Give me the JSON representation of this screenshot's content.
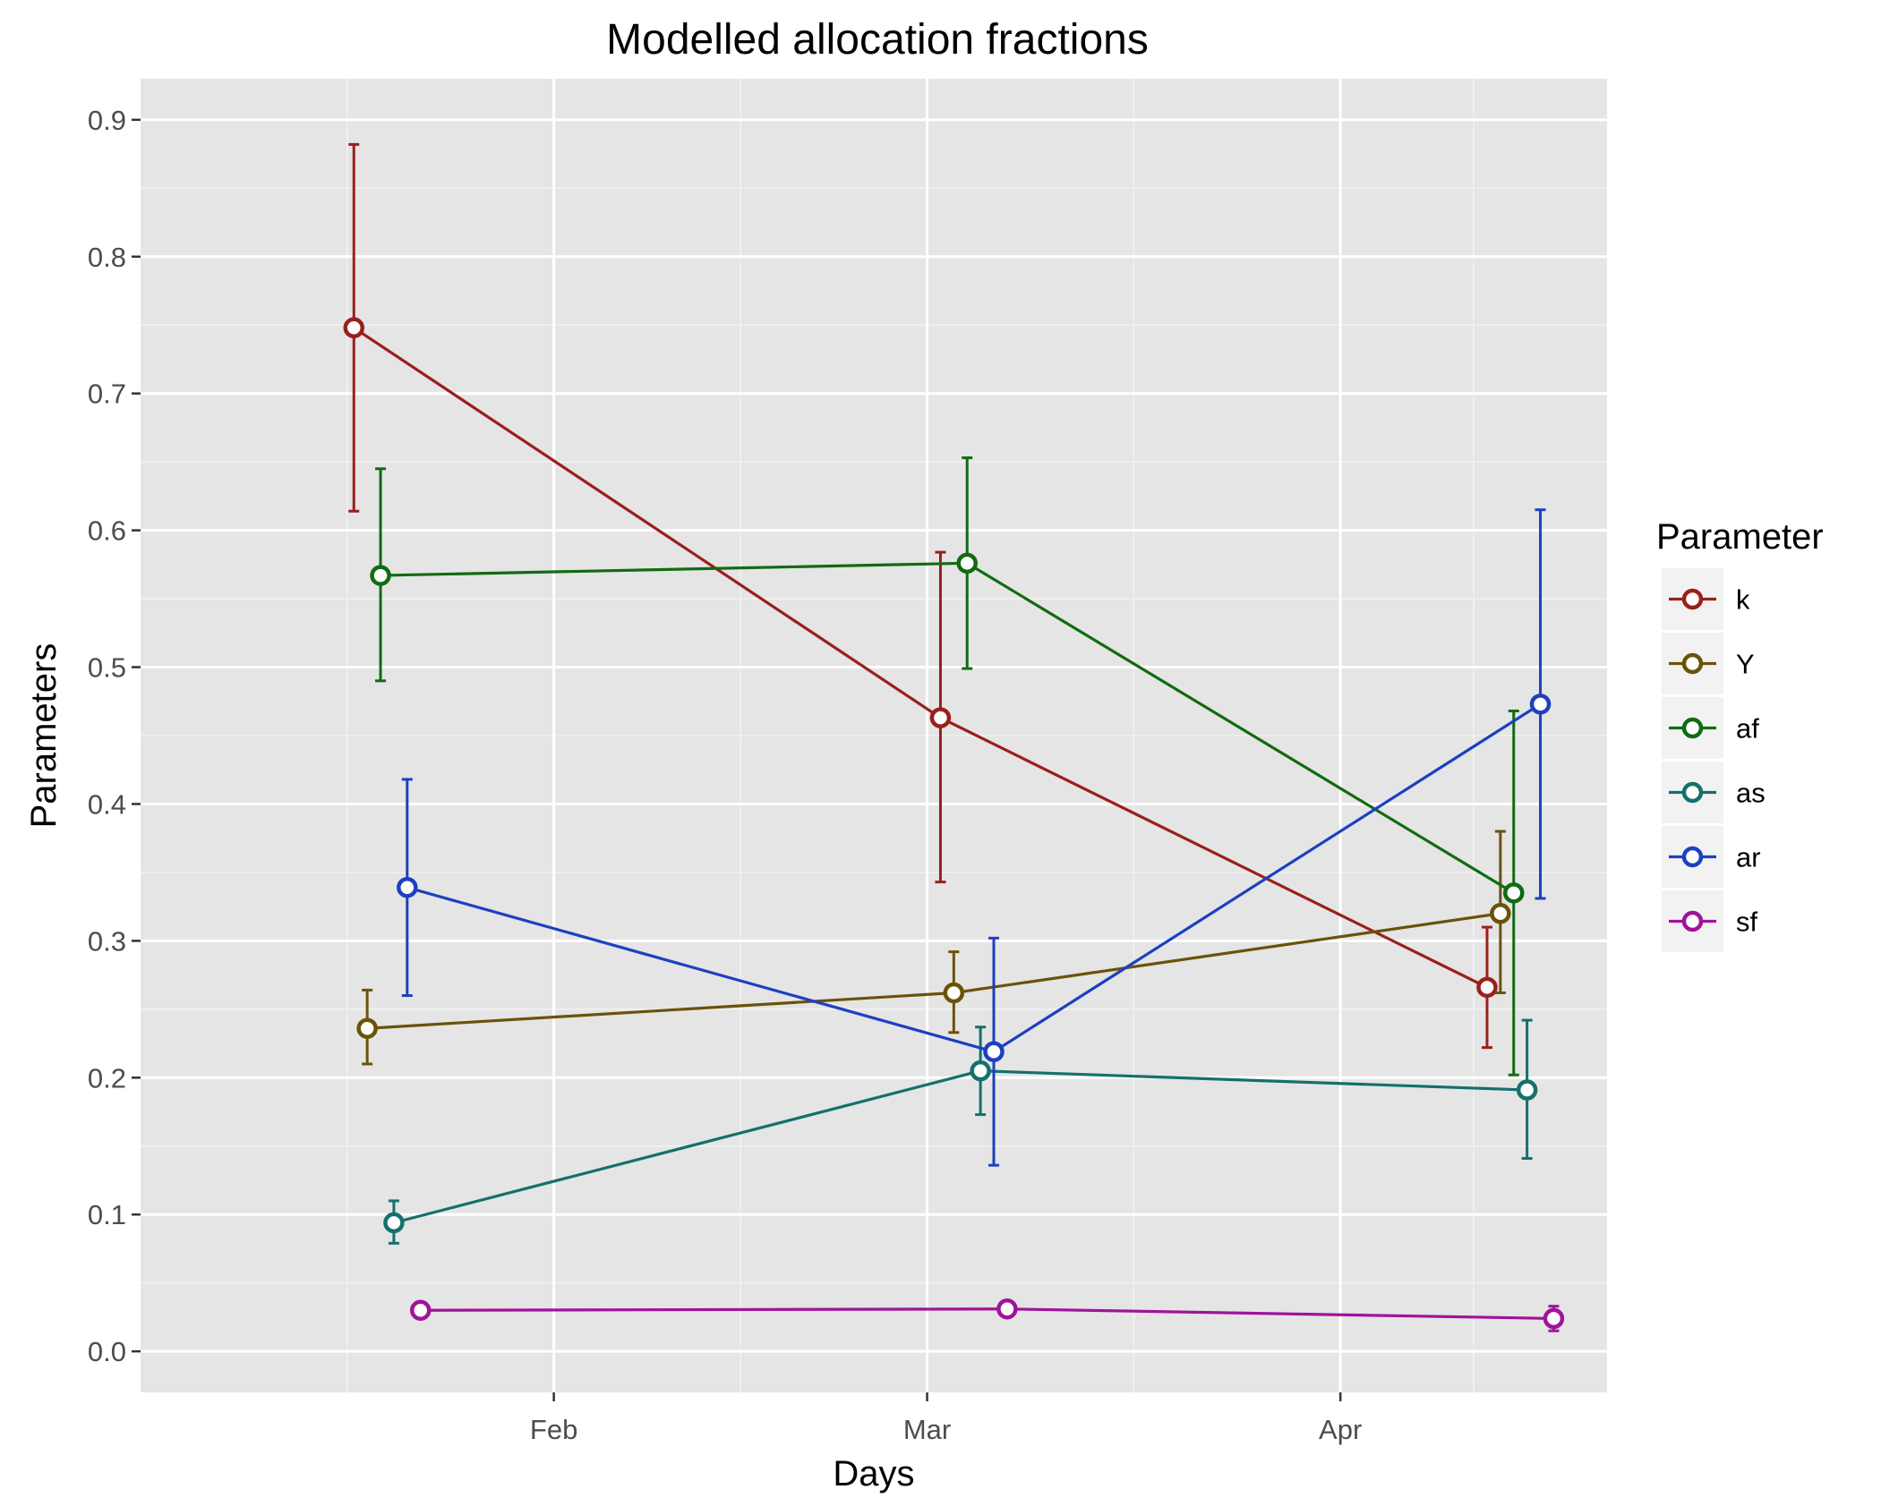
{
  "chart_data": {
    "type": "line",
    "title": "Modelled allocation fractions",
    "xlabel": "Days",
    "ylabel": "Parameters",
    "x_type": "date",
    "x_range": [
      "2017-01-01",
      "2017-04-21"
    ],
    "x_ticks": [
      {
        "date": "2017-02-01",
        "label": "Feb"
      },
      {
        "date": "2017-03-01",
        "label": "Mar"
      },
      {
        "date": "2017-04-01",
        "label": "Apr"
      }
    ],
    "ylim": [
      -0.03,
      0.93
    ],
    "y_ticks": [
      "0.0",
      "0.1",
      "0.2",
      "0.3",
      "0.4",
      "0.5",
      "0.6",
      "0.7",
      "0.8",
      "0.9"
    ],
    "grid": true,
    "legend": {
      "title": "Parameter",
      "placement": "right"
    },
    "series": [
      {
        "name": "k",
        "color": "#9a1f1b",
        "points": [
          {
            "x": "2017-01-17",
            "y": 0.748,
            "lo": 0.614,
            "hi": 0.882
          },
          {
            "x": "2017-03-02",
            "y": 0.463,
            "lo": 0.343,
            "hi": 0.584
          },
          {
            "x": "2017-04-12",
            "y": 0.266,
            "lo": 0.222,
            "hi": 0.31
          }
        ]
      },
      {
        "name": "Y",
        "color": "#6b5208",
        "points": [
          {
            "x": "2017-01-18",
            "y": 0.236,
            "lo": 0.21,
            "hi": 0.264
          },
          {
            "x": "2017-03-03",
            "y": 0.262,
            "lo": 0.233,
            "hi": 0.292
          },
          {
            "x": "2017-04-13",
            "y": 0.32,
            "lo": 0.262,
            "hi": 0.38
          }
        ]
      },
      {
        "name": "af",
        "color": "#116b11",
        "points": [
          {
            "x": "2017-01-19",
            "y": 0.567,
            "lo": 0.49,
            "hi": 0.645
          },
          {
            "x": "2017-03-04",
            "y": 0.576,
            "lo": 0.499,
            "hi": 0.653
          },
          {
            "x": "2017-04-14",
            "y": 0.335,
            "lo": 0.202,
            "hi": 0.468
          }
        ]
      },
      {
        "name": "as",
        "color": "#14706c",
        "points": [
          {
            "x": "2017-01-20",
            "y": 0.094,
            "lo": 0.079,
            "hi": 0.11
          },
          {
            "x": "2017-03-05",
            "y": 0.205,
            "lo": 0.173,
            "hi": 0.237
          },
          {
            "x": "2017-04-15",
            "y": 0.191,
            "lo": 0.141,
            "hi": 0.242
          }
        ]
      },
      {
        "name": "ar",
        "color": "#1c40c0",
        "points": [
          {
            "x": "2017-01-21",
            "y": 0.339,
            "lo": 0.26,
            "hi": 0.418
          },
          {
            "x": "2017-03-06",
            "y": 0.219,
            "lo": 0.136,
            "hi": 0.302
          },
          {
            "x": "2017-04-16",
            "y": 0.473,
            "lo": 0.331,
            "hi": 0.615
          }
        ]
      },
      {
        "name": "sf",
        "color": "#a0139a",
        "points": [
          {
            "x": "2017-01-22",
            "y": 0.03,
            "lo": 0.028,
            "hi": 0.032
          },
          {
            "x": "2017-03-07",
            "y": 0.031,
            "lo": 0.029,
            "hi": 0.033
          },
          {
            "x": "2017-04-17",
            "y": 0.024,
            "lo": 0.015,
            "hi": 0.033
          }
        ]
      }
    ]
  }
}
